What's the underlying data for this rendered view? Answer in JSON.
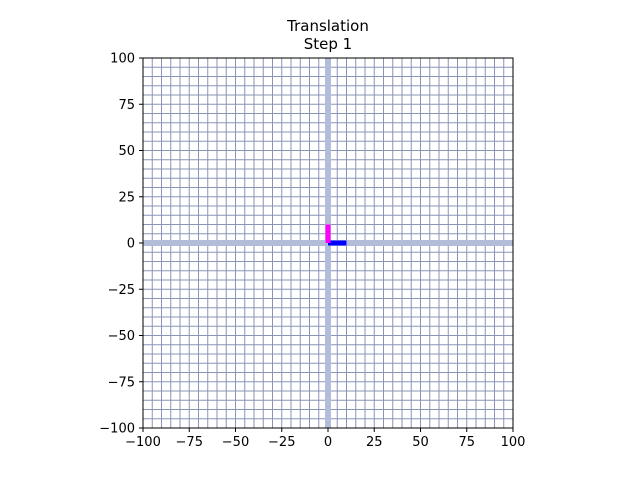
{
  "chart_data": {
    "type": "line",
    "title": "Translation",
    "subtitle": "Step 1",
    "xlabel": "",
    "ylabel": "",
    "xlim": [
      -100,
      100
    ],
    "ylim": [
      -100,
      100
    ],
    "xticks": [
      -100,
      -75,
      -50,
      -25,
      0,
      25,
      50,
      75,
      100
    ],
    "yticks": [
      -100,
      -75,
      -50,
      -25,
      0,
      25,
      50,
      75,
      100
    ],
    "xtick_labels": [
      "−100",
      "−75",
      "−50",
      "−25",
      "0",
      "25",
      "50",
      "75",
      "100"
    ],
    "ytick_labels": [
      "−100",
      "−75",
      "−50",
      "−25",
      "0",
      "25",
      "50",
      "75",
      "100"
    ],
    "grid": true,
    "grid_step": 5,
    "series": [
      {
        "color": "#0000ff",
        "x": [
          0,
          10
        ],
        "y": [
          0,
          0
        ]
      },
      {
        "color": "#ff00ff",
        "x": [
          0,
          0
        ],
        "y": [
          0,
          10
        ]
      }
    ]
  }
}
